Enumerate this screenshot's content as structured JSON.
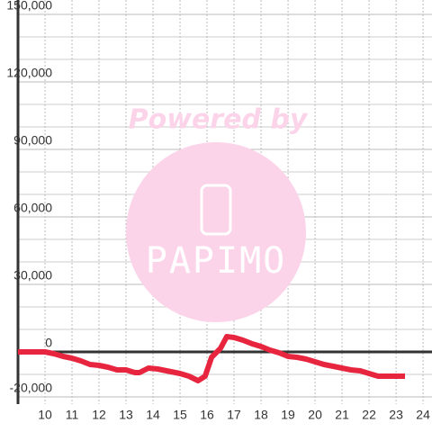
{
  "chart_data": {
    "type": "line",
    "watermark": {
      "title": "Powered by",
      "brand": "PAPIMO"
    },
    "x": [
      9,
      10,
      10.33,
      10.67,
      11,
      11.33,
      11.67,
      12,
      12.33,
      12.67,
      13,
      13.33,
      13.5,
      13.83,
      14.17,
      14.67,
      15,
      15.33,
      15.67,
      15.93,
      16.17,
      16.5,
      16.73,
      17,
      17.33,
      17.67,
      18,
      18.33,
      18.67,
      19,
      19.33,
      19.67,
      20,
      20.33,
      20.67,
      21,
      21.33,
      21.67,
      22,
      22.33,
      23.33
    ],
    "series": [
      {
        "color": "#e8253f",
        "values": [
          0,
          0,
          -800,
          -2000,
          -2800,
          -4000,
          -5600,
          -6000,
          -6800,
          -8000,
          -8000,
          -9200,
          -9200,
          -7200,
          -7600,
          -8800,
          -9600,
          -10800,
          -12800,
          -10800,
          -2400,
          1600,
          6800,
          6400,
          5200,
          3600,
          2400,
          800,
          -400,
          -2000,
          -2400,
          -3200,
          -4400,
          -5600,
          -6400,
          -7200,
          -8000,
          -8400,
          -9600,
          -10800,
          -10800
        ]
      }
    ],
    "xlim": [
      9,
      24.33
    ],
    "xticks": [
      10,
      11,
      12,
      13,
      14,
      15,
      16,
      17,
      18,
      19,
      20,
      21,
      22,
      23,
      24
    ],
    "ylim": [
      -20000,
      150000
    ],
    "yticks": [
      {
        "value": 150000,
        "label": "150,000"
      },
      {
        "value": 120000,
        "label": "120,000"
      },
      {
        "value": 90000,
        "label": "90,000"
      },
      {
        "value": 60000,
        "label": "60,000"
      },
      {
        "value": 30000,
        "label": "30,000"
      },
      0,
      {
        "value": -20000,
        "label": "-20,000"
      }
    ],
    "minor_yticks": [
      140000,
      130000,
      110000,
      100000,
      80000,
      70000,
      50000,
      40000,
      20000,
      10000,
      -10000
    ],
    "grid": true
  }
}
